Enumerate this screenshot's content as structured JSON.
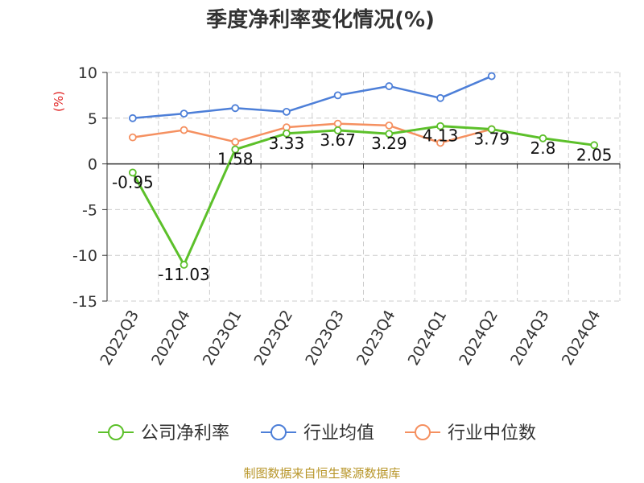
{
  "chart_data": {
    "type": "line",
    "title": "季度净利率变化情况(%)",
    "ylabel": "(%)",
    "xlabel": "",
    "ylim": [
      -15,
      10
    ],
    "yticks": [
      10,
      5,
      0,
      -5,
      -10,
      -15
    ],
    "grid": true,
    "legend_position": "bottom",
    "categories": [
      "2022Q3",
      "2022Q4",
      "2023Q1",
      "2023Q2",
      "2023Q3",
      "2023Q4",
      "2024Q1",
      "2024Q2",
      "2024Q3",
      "2024Q4"
    ],
    "series": [
      {
        "name": "公司净利率",
        "color": "#5cc02a",
        "values": [
          -0.95,
          -11.03,
          1.58,
          3.33,
          3.67,
          3.29,
          4.13,
          3.79,
          2.8,
          2.05
        ],
        "data_labels": [
          "-0.95",
          "-11.03",
          "1.58",
          "3.33",
          "3.67",
          "3.29",
          "4.13",
          "3.79",
          "2.8",
          "2.05"
        ]
      },
      {
        "name": "行业均值",
        "color": "#4d7fd8",
        "values": [
          5.0,
          5.5,
          6.1,
          5.7,
          7.5,
          8.5,
          7.2,
          9.6,
          null,
          null
        ]
      },
      {
        "name": "行业中位数",
        "color": "#f59060",
        "values": [
          2.9,
          3.7,
          2.4,
          4.0,
          4.4,
          4.2,
          2.3,
          3.8,
          null,
          null
        ]
      }
    ]
  },
  "source_text": "制图数据来自恒生聚源数据库"
}
